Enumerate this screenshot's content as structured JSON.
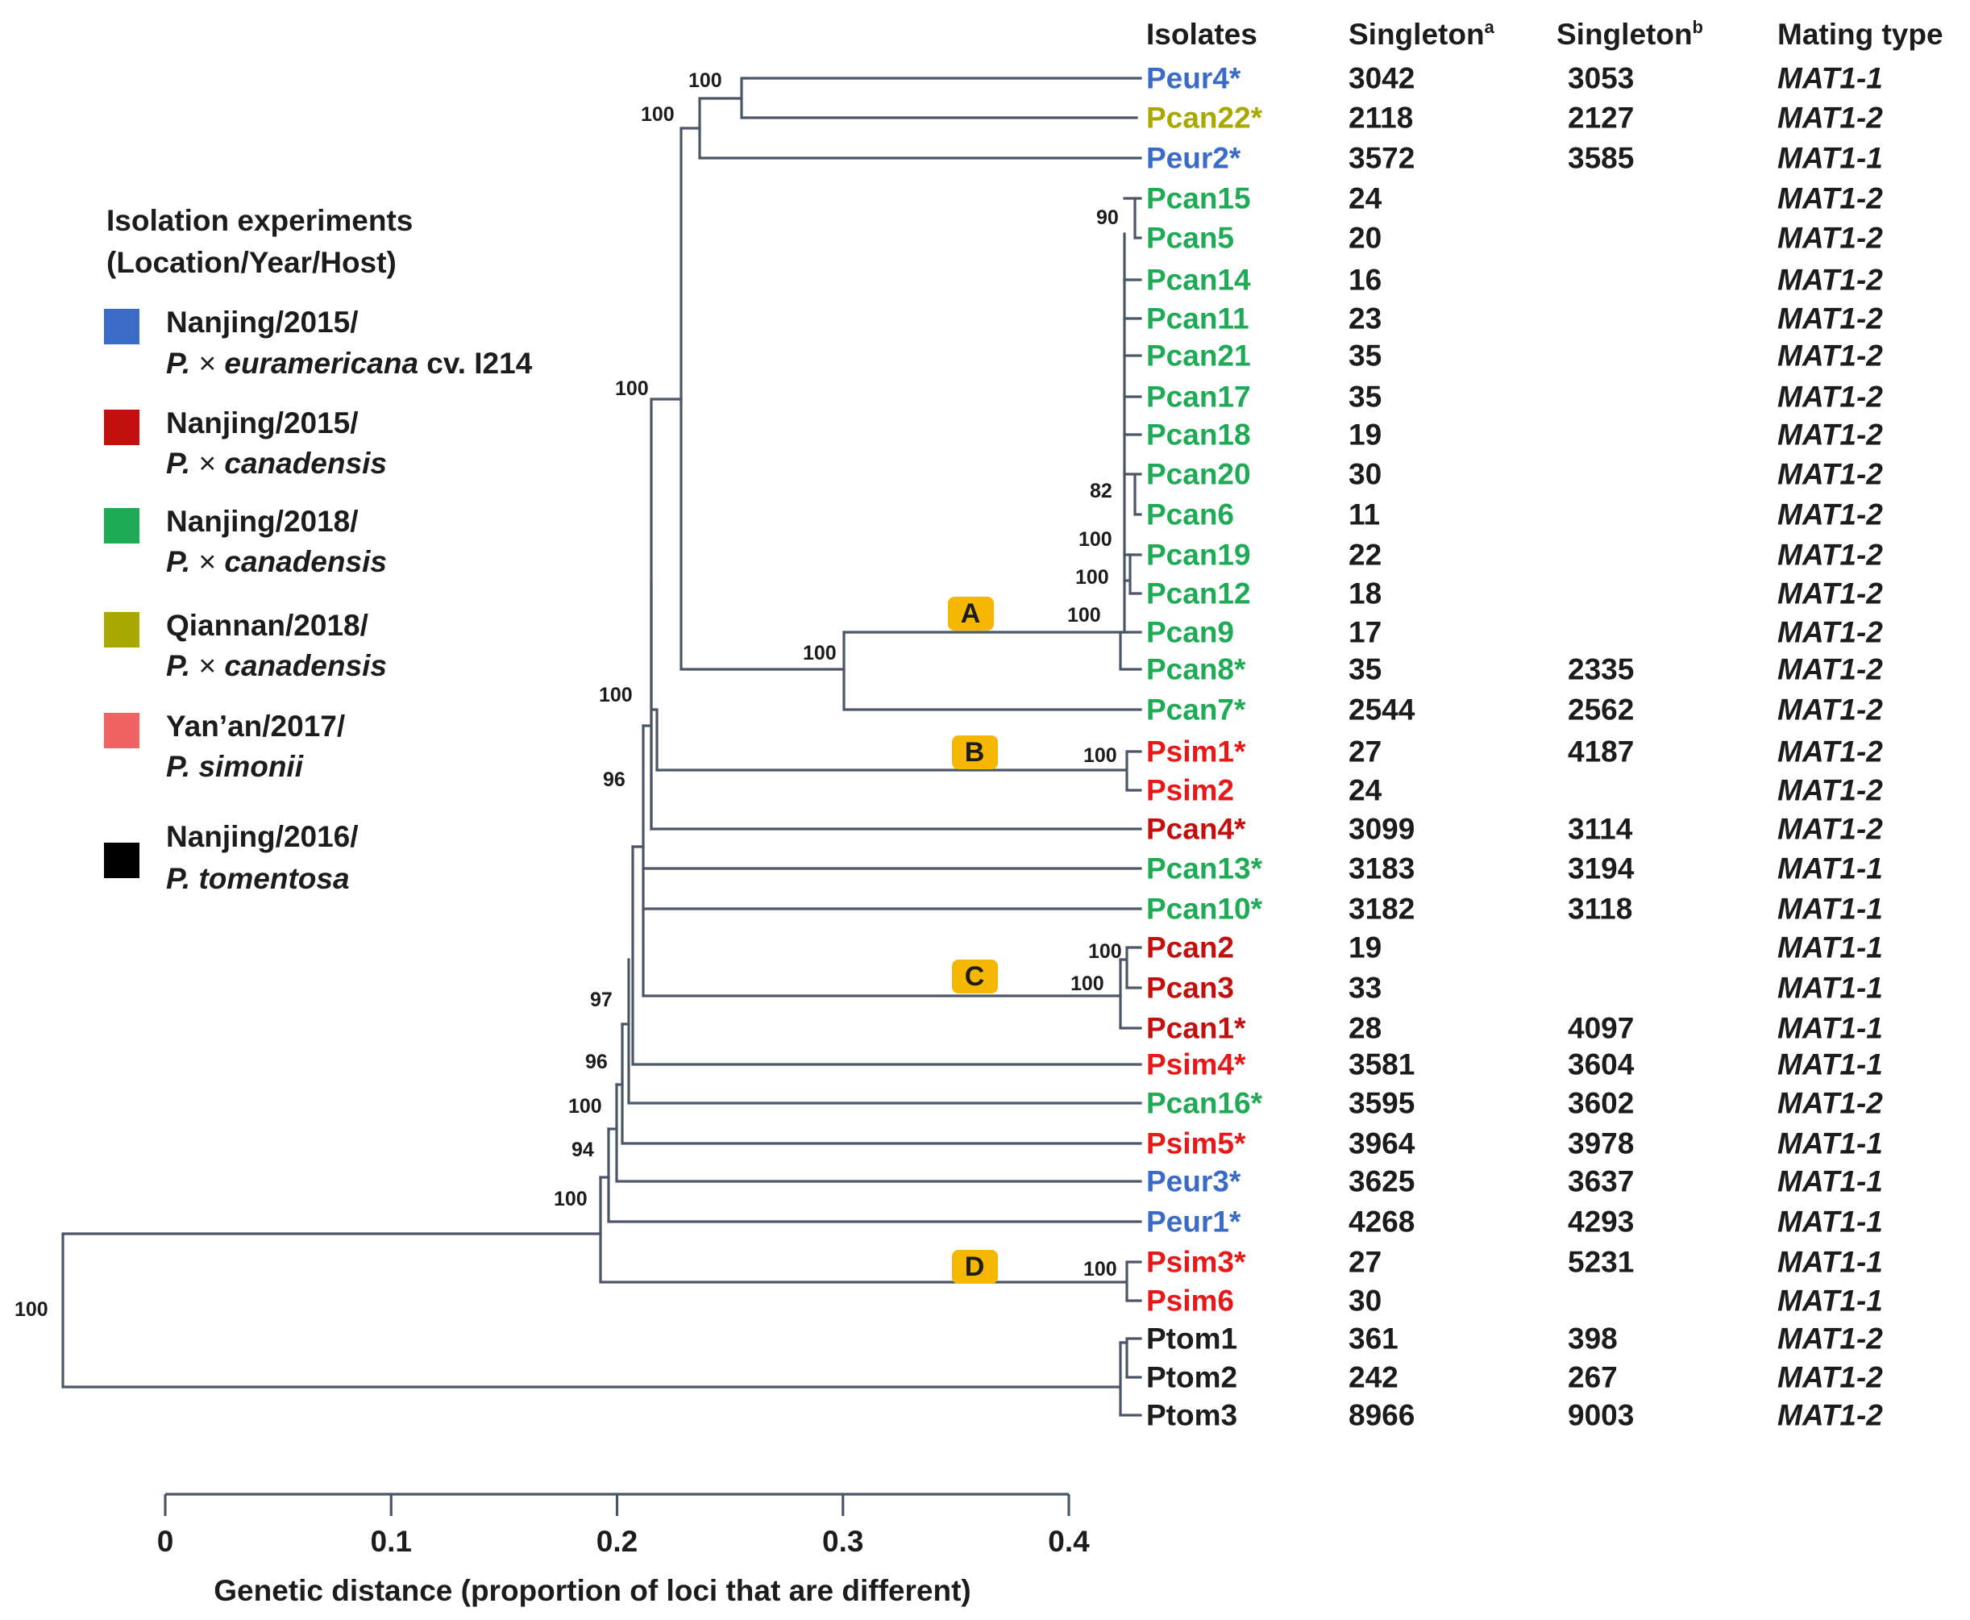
{
  "headers": {
    "isolates": "Isolates",
    "singleton_a": "Singleton",
    "singleton_a_sup": "a",
    "singleton_b": "Singleton",
    "singleton_b_sup": "b",
    "mating_type": "Mating type"
  },
  "colors": {
    "blue": "#3a6bc6",
    "olive": "#a8a800",
    "green": "#1faa55",
    "darkred": "#c40f0f",
    "pink": "#f26262",
    "red": "#e81818",
    "black": "#1c1c1c"
  },
  "legend": {
    "title_line1": "Isolation experiments",
    "title_line2": "(Location/Year/Host)",
    "items": [
      {
        "color": "#3a6bc6",
        "line1": "Nanjing/2015/",
        "host_italic": "P.",
        "host_cross": " × ",
        "host_rest": "euramericana",
        "host_suffix": " cv. I214"
      },
      {
        "color": "#c40f0f",
        "line1": "Nanjing/2015/",
        "host_italic": "P.",
        "host_cross": " × ",
        "host_rest": "canadensis",
        "host_suffix": ""
      },
      {
        "color": "#1faa55",
        "line1": "Nanjing/2018/",
        "host_italic": "P.",
        "host_cross": " × ",
        "host_rest": "canadensis",
        "host_suffix": ""
      },
      {
        "color": "#a8a800",
        "line1": "Qiannan/2018/",
        "host_italic": "P.",
        "host_cross": " × ",
        "host_rest": "canadensis",
        "host_suffix": ""
      },
      {
        "color": "#f26262",
        "line1": "Yan’an/2017/",
        "host_italic": "P. simonii",
        "host_cross": "",
        "host_rest": "",
        "host_suffix": ""
      },
      {
        "color": "#000000",
        "line1": "Nanjing/2016/",
        "host_italic": "P. tomentosa",
        "host_cross": "",
        "host_rest": "",
        "host_suffix": ""
      }
    ]
  },
  "isolates": [
    {
      "label": "Peur4*",
      "color": "blue",
      "s_a": "3042",
      "s_b": "3053",
      "mating": "MAT1-1"
    },
    {
      "label": "Pcan22*",
      "color": "olive",
      "s_a": "2118",
      "s_b": "2127",
      "mating": "MAT1-2"
    },
    {
      "label": "Peur2*",
      "color": "blue",
      "s_a": "3572",
      "s_b": "3585",
      "mating": "MAT1-1"
    },
    {
      "label": "Pcan15",
      "color": "green",
      "s_a": "24",
      "s_b": "",
      "mating": "MAT1-2"
    },
    {
      "label": "Pcan5",
      "color": "green",
      "s_a": "20",
      "s_b": "",
      "mating": "MAT1-2"
    },
    {
      "label": "Pcan14",
      "color": "green",
      "s_a": "16",
      "s_b": "",
      "mating": "MAT1-2"
    },
    {
      "label": "Pcan11",
      "color": "green",
      "s_a": "23",
      "s_b": "",
      "mating": "MAT1-2"
    },
    {
      "label": "Pcan21",
      "color": "green",
      "s_a": "35",
      "s_b": "",
      "mating": "MAT1-2"
    },
    {
      "label": "Pcan17",
      "color": "green",
      "s_a": "35",
      "s_b": "",
      "mating": "MAT1-2"
    },
    {
      "label": "Pcan18",
      "color": "green",
      "s_a": "19",
      "s_b": "",
      "mating": "MAT1-2"
    },
    {
      "label": "Pcan20",
      "color": "green",
      "s_a": "30",
      "s_b": "",
      "mating": "MAT1-2"
    },
    {
      "label": "Pcan6",
      "color": "green",
      "s_a": "11",
      "s_b": "",
      "mating": "MAT1-2"
    },
    {
      "label": "Pcan19",
      "color": "green",
      "s_a": "22",
      "s_b": "",
      "mating": "MAT1-2"
    },
    {
      "label": "Pcan12",
      "color": "green",
      "s_a": "18",
      "s_b": "",
      "mating": "MAT1-2"
    },
    {
      "label": "Pcan9",
      "color": "green",
      "s_a": "17",
      "s_b": "",
      "mating": "MAT1-2"
    },
    {
      "label": "Pcan8*",
      "color": "green",
      "s_a": "35",
      "s_b": "2335",
      "mating": "MAT1-2"
    },
    {
      "label": "Pcan7*",
      "color": "green",
      "s_a": "2544",
      "s_b": "2562",
      "mating": "MAT1-2"
    },
    {
      "label": "Psim1*",
      "color": "red",
      "s_a": "27",
      "s_b": "4187",
      "mating": "MAT1-2"
    },
    {
      "label": "Psim2",
      "color": "red",
      "s_a": "24",
      "s_b": "",
      "mating": "MAT1-2"
    },
    {
      "label": "Pcan4*",
      "color": "darkred",
      "s_a": "3099",
      "s_b": "3114",
      "mating": "MAT1-2"
    },
    {
      "label": "Pcan13*",
      "color": "green",
      "s_a": "3183",
      "s_b": "3194",
      "mating": "MAT1-1"
    },
    {
      "label": "Pcan10*",
      "color": "green",
      "s_a": "3182",
      "s_b": "3118",
      "mating": "MAT1-1"
    },
    {
      "label": "Pcan2",
      "color": "darkred",
      "s_a": "19",
      "s_b": "",
      "mating": "MAT1-1"
    },
    {
      "label": "Pcan3",
      "color": "darkred",
      "s_a": "33",
      "s_b": "",
      "mating": "MAT1-1"
    },
    {
      "label": "Pcan1*",
      "color": "darkred",
      "s_a": "28",
      "s_b": "4097",
      "mating": "MAT1-1"
    },
    {
      "label": "Psim4*",
      "color": "red",
      "s_a": "3581",
      "s_b": "3604",
      "mating": "MAT1-1"
    },
    {
      "label": "Pcan16*",
      "color": "green",
      "s_a": "3595",
      "s_b": "3602",
      "mating": "MAT1-2"
    },
    {
      "label": "Psim5*",
      "color": "red",
      "s_a": "3964",
      "s_b": "3978",
      "mating": "MAT1-1"
    },
    {
      "label": "Peur3*",
      "color": "blue",
      "s_a": "3625",
      "s_b": "3637",
      "mating": "MAT1-1"
    },
    {
      "label": "Peur1*",
      "color": "blue",
      "s_a": "4268",
      "s_b": "4293",
      "mating": "MAT1-1"
    },
    {
      "label": "Psim3*",
      "color": "red",
      "s_a": "27",
      "s_b": "5231",
      "mating": "MAT1-1"
    },
    {
      "label": "Psim6",
      "color": "red",
      "s_a": "30",
      "s_b": "",
      "mating": "MAT1-1"
    },
    {
      "label": "Ptom1",
      "color": "black",
      "s_a": "361",
      "s_b": "398",
      "mating": "MAT1-2"
    },
    {
      "label": "Ptom2",
      "color": "black",
      "s_a": "242",
      "s_b": "267",
      "mating": "MAT1-2"
    },
    {
      "label": "Ptom3",
      "color": "black",
      "s_a": "8966",
      "s_b": "9003",
      "mating": "MAT1-2"
    }
  ],
  "support_values": [
    "100",
    "100",
    "100",
    "90",
    "82",
    "100",
    "100",
    "100",
    "100",
    "100",
    "96",
    "100",
    "100",
    "97",
    "96",
    "100",
    "94",
    "100",
    "100",
    "100"
  ],
  "clades": [
    "A",
    "B",
    "C",
    "D"
  ],
  "axis": {
    "ticks": [
      0,
      0.1,
      0.2,
      0.3,
      0.4
    ],
    "tick_labels": [
      "0",
      "0.1",
      "0.2",
      "0.3",
      "0.4"
    ],
    "label": "Genetic distance (proportion of loci that are different)"
  }
}
